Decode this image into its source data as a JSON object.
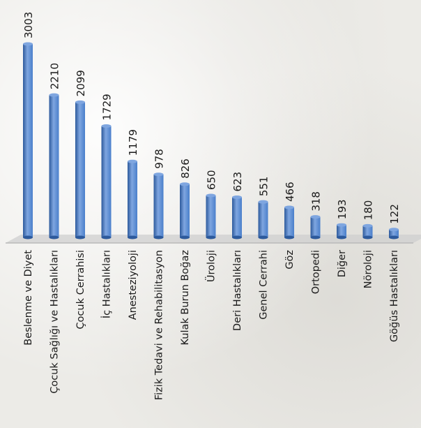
{
  "chart_data": {
    "type": "bar",
    "categories": [
      "Beslenme ve Diyet",
      "Çocuk Sağlığı ve Hastalıkları",
      "Çocuk Cerrahisi",
      "İç Hastalıkları",
      "Anesteziyoloji",
      "Fizik Tedavi ve Rehabilitasyon",
      "Kulak Burun Boğaz",
      "Üroloji",
      "Deri Hastalıkları",
      "Genel Cerrahi",
      "Göz",
      "Ortopedi",
      "Diğer",
      "Nöroloji",
      "Göğüs Hastalıkları"
    ],
    "values": [
      3003,
      2210,
      2099,
      1729,
      1179,
      978,
      826,
      650,
      623,
      551,
      466,
      318,
      193,
      180,
      122
    ],
    "value_labels": [
      "3003",
      "2210",
      "2099",
      "1729",
      "1179",
      "978",
      "826",
      "650",
      "623",
      "551",
      "466",
      "318",
      "193",
      "180",
      "122"
    ],
    "ylim": [
      0,
      3003
    ],
    "grid": false,
    "legend": "none",
    "bar_color": "#4a7fcb",
    "bar_color_dark": "#2d5a9c",
    "bar_color_light": "#7fa6e0",
    "floor_color": "#cfcfcf"
  }
}
